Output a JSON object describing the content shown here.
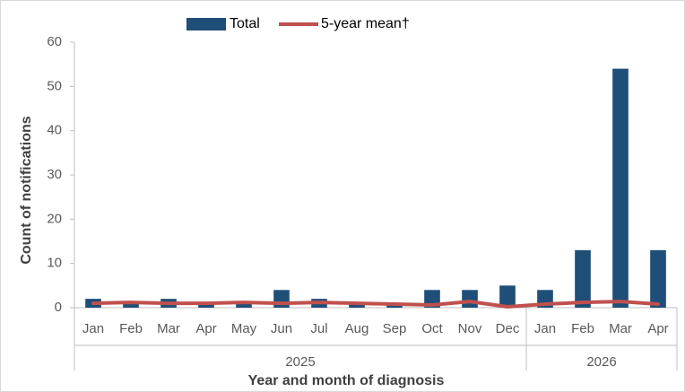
{
  "chart_data": {
    "type": "bar_line",
    "groups": [
      {
        "label": "2025",
        "categories": [
          "Jan",
          "Feb",
          "Mar",
          "Apr",
          "May",
          "Jun",
          "Jul",
          "Aug",
          "Sep",
          "Oct",
          "Nov",
          "Dec"
        ]
      },
      {
        "label": "2026",
        "categories": [
          "Jan",
          "Feb",
          "Mar",
          "Apr"
        ]
      }
    ],
    "series": [
      {
        "name": "Total",
        "type": "bar",
        "color": "#1f4e79",
        "values": [
          2,
          1,
          2,
          1,
          1,
          4,
          2,
          1,
          1,
          4,
          4,
          5,
          4,
          13,
          54,
          13
        ]
      },
      {
        "name": "5-year mean†",
        "type": "line",
        "color": "#c0504d",
        "values": [
          1,
          1.2,
          1,
          1,
          1.2,
          1,
          1.2,
          1,
          0.8,
          0.6,
          1.4,
          0.2,
          0.8,
          1.2,
          1.4,
          0.8
        ]
      }
    ],
    "y_label": "Count of notifications",
    "x_label": "Year and month of diagnosis",
    "ylim": [
      0,
      60
    ],
    "yticks": [
      0,
      10,
      20,
      30,
      40,
      50,
      60
    ],
    "grid": false,
    "legend": "top"
  }
}
